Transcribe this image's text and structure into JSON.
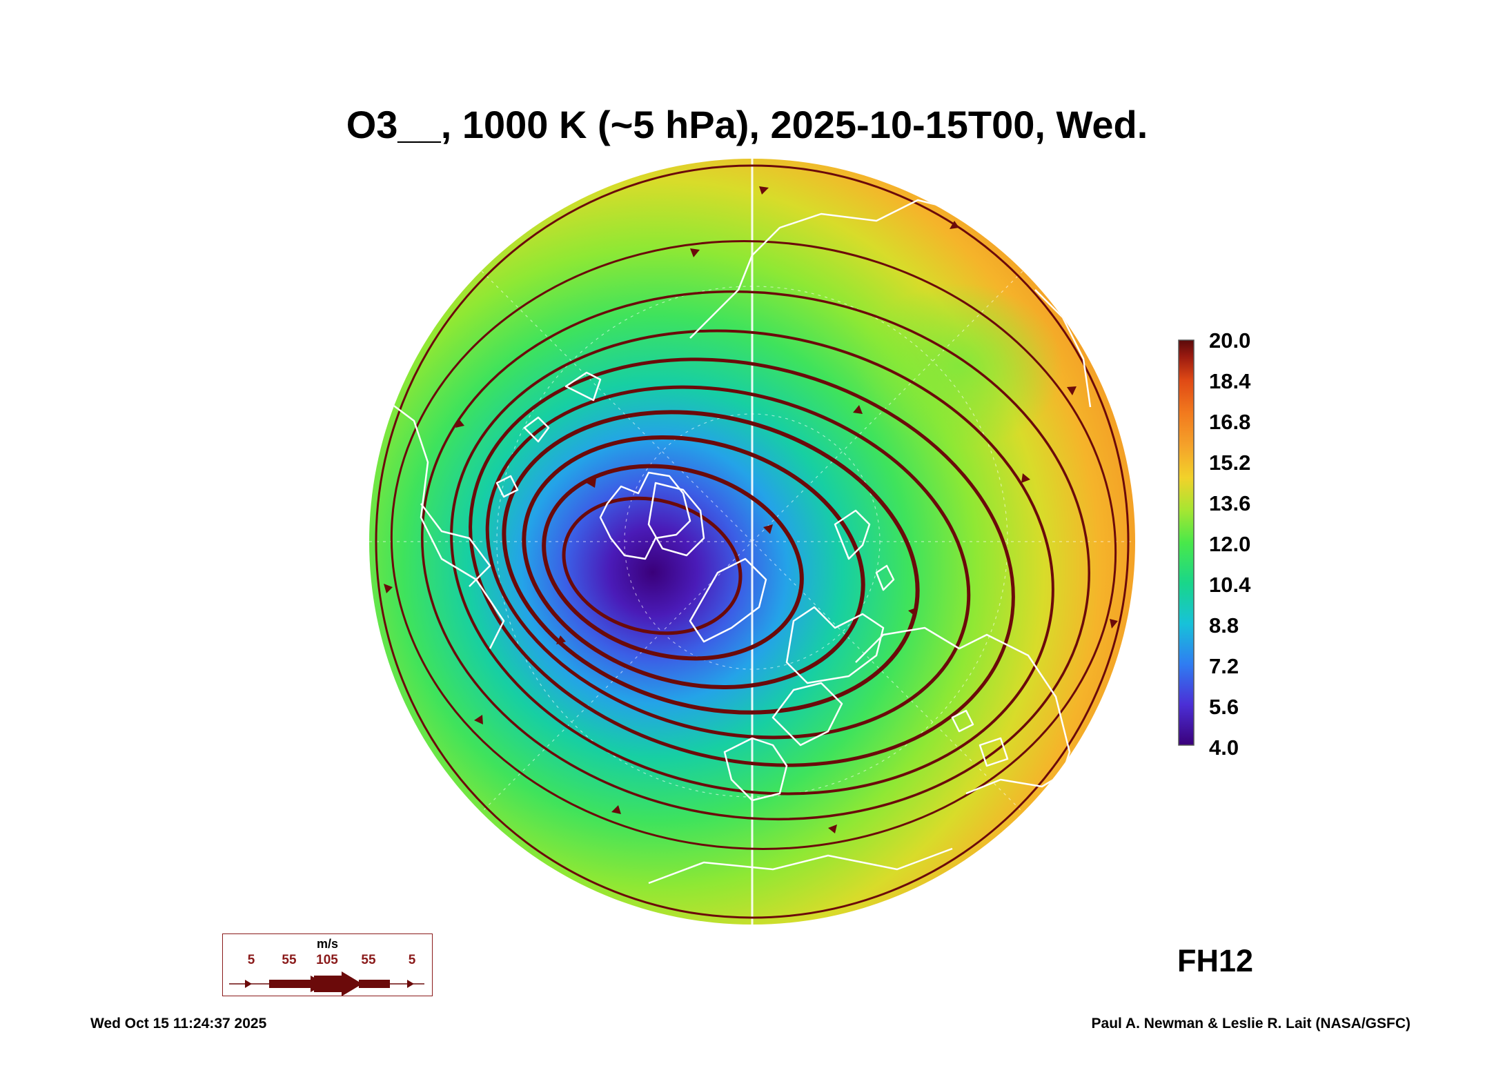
{
  "title": "O3__, 1000 K (~5 hPa), 2025-10-15T00, Wed.",
  "colorbar": {
    "ticks": [
      "20.0",
      "18.4",
      "16.8",
      "15.2",
      "13.6",
      "12.0",
      "10.4",
      "8.8",
      "7.2",
      "5.6",
      "4.0"
    ],
    "min": 4.0,
    "max": 20.0,
    "colors": [
      "#3a007a",
      "#4b2fd6",
      "#2f7df2",
      "#17c2d9",
      "#19d68a",
      "#49e84a",
      "#a6e632",
      "#f2d22a",
      "#f5a22a",
      "#f27a1e",
      "#e04a15",
      "#9a1a10",
      "#5a0a0a"
    ]
  },
  "wind_legend": {
    "unit": "m/s",
    "labels": [
      "5",
      "55",
      "105",
      "55",
      "5"
    ],
    "color": "#6b0a0a"
  },
  "forecast_hour": "FH12",
  "footer": {
    "timestamp": "Wed Oct 15 11:24:37 2025",
    "credit": "Paul A. Newman & Leslie R. Lait (NASA/GSFC)"
  },
  "map": {
    "projection": "north polar stereographic",
    "field_range": "ozone low (~5) near polar vortex center, high (~16) at edges",
    "coastline_color": "#ffffff",
    "streamline_color": "#6b0a0a"
  }
}
